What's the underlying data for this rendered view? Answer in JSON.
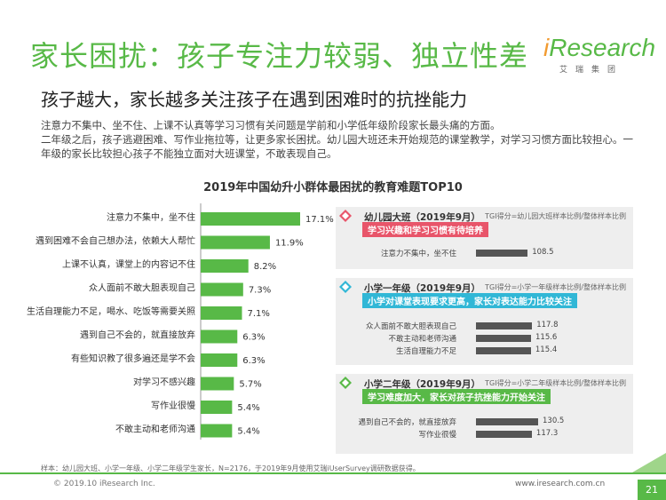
{
  "header": {
    "title": "家长困扰：孩子专注力较弱、独立性差",
    "subtitle": "孩子越大，家长越多关注孩子在遇到困难时的抗挫能力",
    "logo_text_i": "i",
    "logo_text_rest": "Research",
    "logo_sub": "艾瑞集团"
  },
  "description": [
    "注意力不集中、坐不住、上课不认真等学习习惯有关问题是学前和小学低年级阶段家长最头痛的方面。",
    "二年级之后，孩子逃避困难、写作业拖拉等，让更多家长困扰。幼儿园大班还未开始规范的课堂教学，对学习习惯方面比较担心。一年级的家长比较担心孩子不能独立面对大班课堂，不敢表现自己。"
  ],
  "chart_data": [
    {
      "type": "bar",
      "orientation": "horizontal",
      "title": "2019年中国幼升小群体最困扰的教育难题TOP10",
      "categories": [
        "注意力不集中，坐不住",
        "遇到困难不会自己想办法，依赖大人帮忙",
        "上课不认真，课堂上的内容记不住",
        "众人面前不敢大胆表现自己",
        "生活自理能力不足，喝水、吃饭等需要关照",
        "遇到自己不会的，就直接放弃",
        "有些知识教了很多遍还是学不会",
        "对学习不感兴趣",
        "写作业很慢",
        "不敢主动和老师沟通"
      ],
      "values": [
        17.1,
        11.9,
        8.2,
        7.3,
        7.1,
        6.3,
        6.3,
        5.7,
        5.4,
        5.4
      ],
      "value_labels": [
        "17.1%",
        "11.9%",
        "8.2%",
        "7.3%",
        "7.1%",
        "6.3%",
        "6.3%",
        "5.7%",
        "5.4%",
        "5.4%"
      ],
      "color": "#58b947",
      "xlim": [
        0,
        17.1
      ]
    },
    {
      "type": "bar",
      "orientation": "horizontal",
      "title": "幼儿园大班（2019年9月）",
      "categories": [
        "注意力不集中，坐不住"
      ],
      "values": [
        108.5
      ]
    },
    {
      "type": "bar",
      "orientation": "horizontal",
      "title": "小学一年级（2019年9月）",
      "categories": [
        "众人面前不敢大胆表现自己",
        "不敢主动和老师沟通",
        "生活自理能力不足"
      ],
      "values": [
        117.8,
        115.6,
        115.4
      ]
    },
    {
      "type": "bar",
      "orientation": "horizontal",
      "title": "小学二年级（2019年9月）",
      "categories": [
        "遇到自己不会的，就直接放弃",
        "写作业很慢"
      ],
      "values": [
        130.5,
        117.3
      ]
    }
  ],
  "panels": [
    {
      "title": "幼儿园大班（2019年9月）",
      "tgi": "TGI得分=幼儿园大班样本比例/整体样本比例",
      "banner": "学习兴趣和学习习惯有待培养",
      "banner_color": "#e8556a",
      "icon_color": "#e8556a",
      "rows": [
        {
          "label": "注意力不集中，坐不住",
          "value": "108.5"
        }
      ]
    },
    {
      "title": "小学一年级（2019年9月）",
      "tgi": "TGI得分=小学一年级样本比例/整体样本比例",
      "banner": "小学对课堂表现要求更高，家长对表达能力比较关注",
      "banner_color": "#31b7d6",
      "icon_color": "#31b7d6",
      "rows": [
        {
          "label": "众人面前不敢大胆表现自己",
          "value": "117.8"
        },
        {
          "label": "不敢主动和老师沟通",
          "value": "115.6"
        },
        {
          "label": "生活自理能力不足",
          "value": "115.4"
        }
      ]
    },
    {
      "title": "小学二年级（2019年9月）",
      "tgi": "TGI得分=小学二年级样本比例/整体样本比例",
      "banner": "学习难度加大，家长对孩子抗挫能力开始关注",
      "banner_color": "#58b947",
      "icon_color": "#58b947",
      "rows": [
        {
          "label": "遇到自己不会的，就直接放弃",
          "value": "130.5"
        },
        {
          "label": "写作业很慢",
          "value": "117.3"
        }
      ]
    }
  ],
  "footer": {
    "note": "样本：幼儿园大班、小学一年级、小学二年级学生家长，N=2176，于2019年9月使用艾瑞iUserSurvey调研数据获得。",
    "copyright": "© 2019.10 iResearch Inc.",
    "website": "www.iresearch.com.cn",
    "page": "21"
  },
  "colors": {
    "brand_green": "#58b947",
    "brand_orange": "#f29b30",
    "panel_bar": "#555555"
  }
}
